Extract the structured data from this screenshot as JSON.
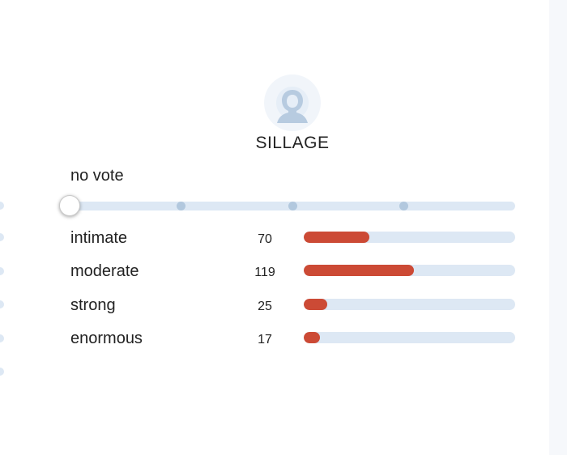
{
  "section": {
    "title": "SILLAGE",
    "avatar_icon": "user-silhouette-icon"
  },
  "vote": {
    "label": "no vote",
    "steps": 5,
    "selected_index": 0
  },
  "ratings": [
    {
      "label": "intimate",
      "count": "70",
      "fraction": 0.31
    },
    {
      "label": "moderate",
      "count": "119",
      "fraction": 0.52
    },
    {
      "label": "strong",
      "count": "25",
      "fraction": 0.11
    },
    {
      "label": "enormous",
      "count": "17",
      "fraction": 0.075
    }
  ],
  "colors": {
    "bar_fill": "#cc4a35",
    "bar_track": "#dde8f4",
    "avatar": "#b7cbe0"
  }
}
